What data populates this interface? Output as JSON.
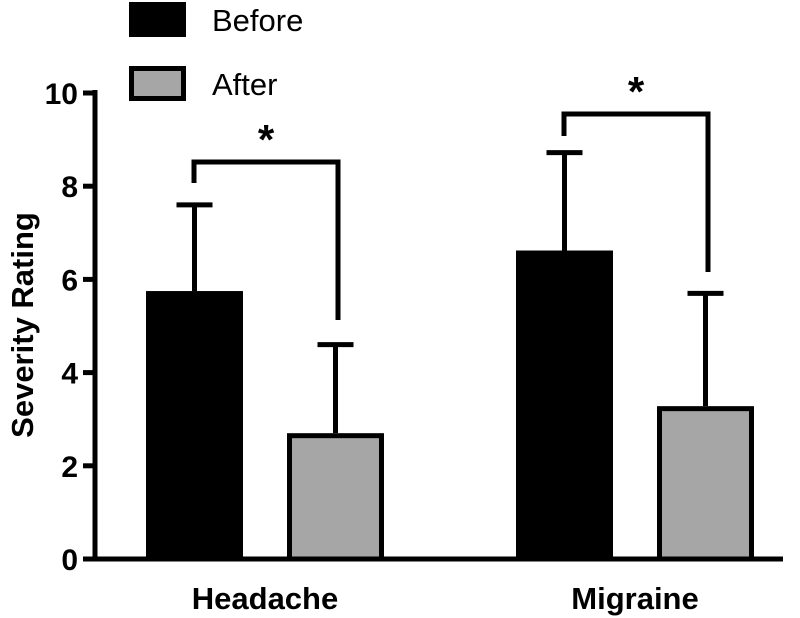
{
  "chart_data": {
    "type": "bar",
    "categories": [
      "Headache",
      "Migraine"
    ],
    "series": [
      {
        "name": "Before",
        "color": "#000000",
        "values": [
          5.75,
          6.62
        ],
        "error": [
          1.85,
          2.1
        ]
      },
      {
        "name": "After",
        "color": "#a6a6a6",
        "values": [
          2.7,
          3.28
        ],
        "error": [
          1.9,
          2.42
        ]
      }
    ],
    "ylabel": "Severity Rating",
    "ylim": [
      0,
      10
    ],
    "yticks": [
      "0",
      "2",
      "4",
      "6",
      "8",
      "10"
    ],
    "significance": [
      "*",
      "*"
    ],
    "legend_position": "top-left",
    "grid": false
  }
}
